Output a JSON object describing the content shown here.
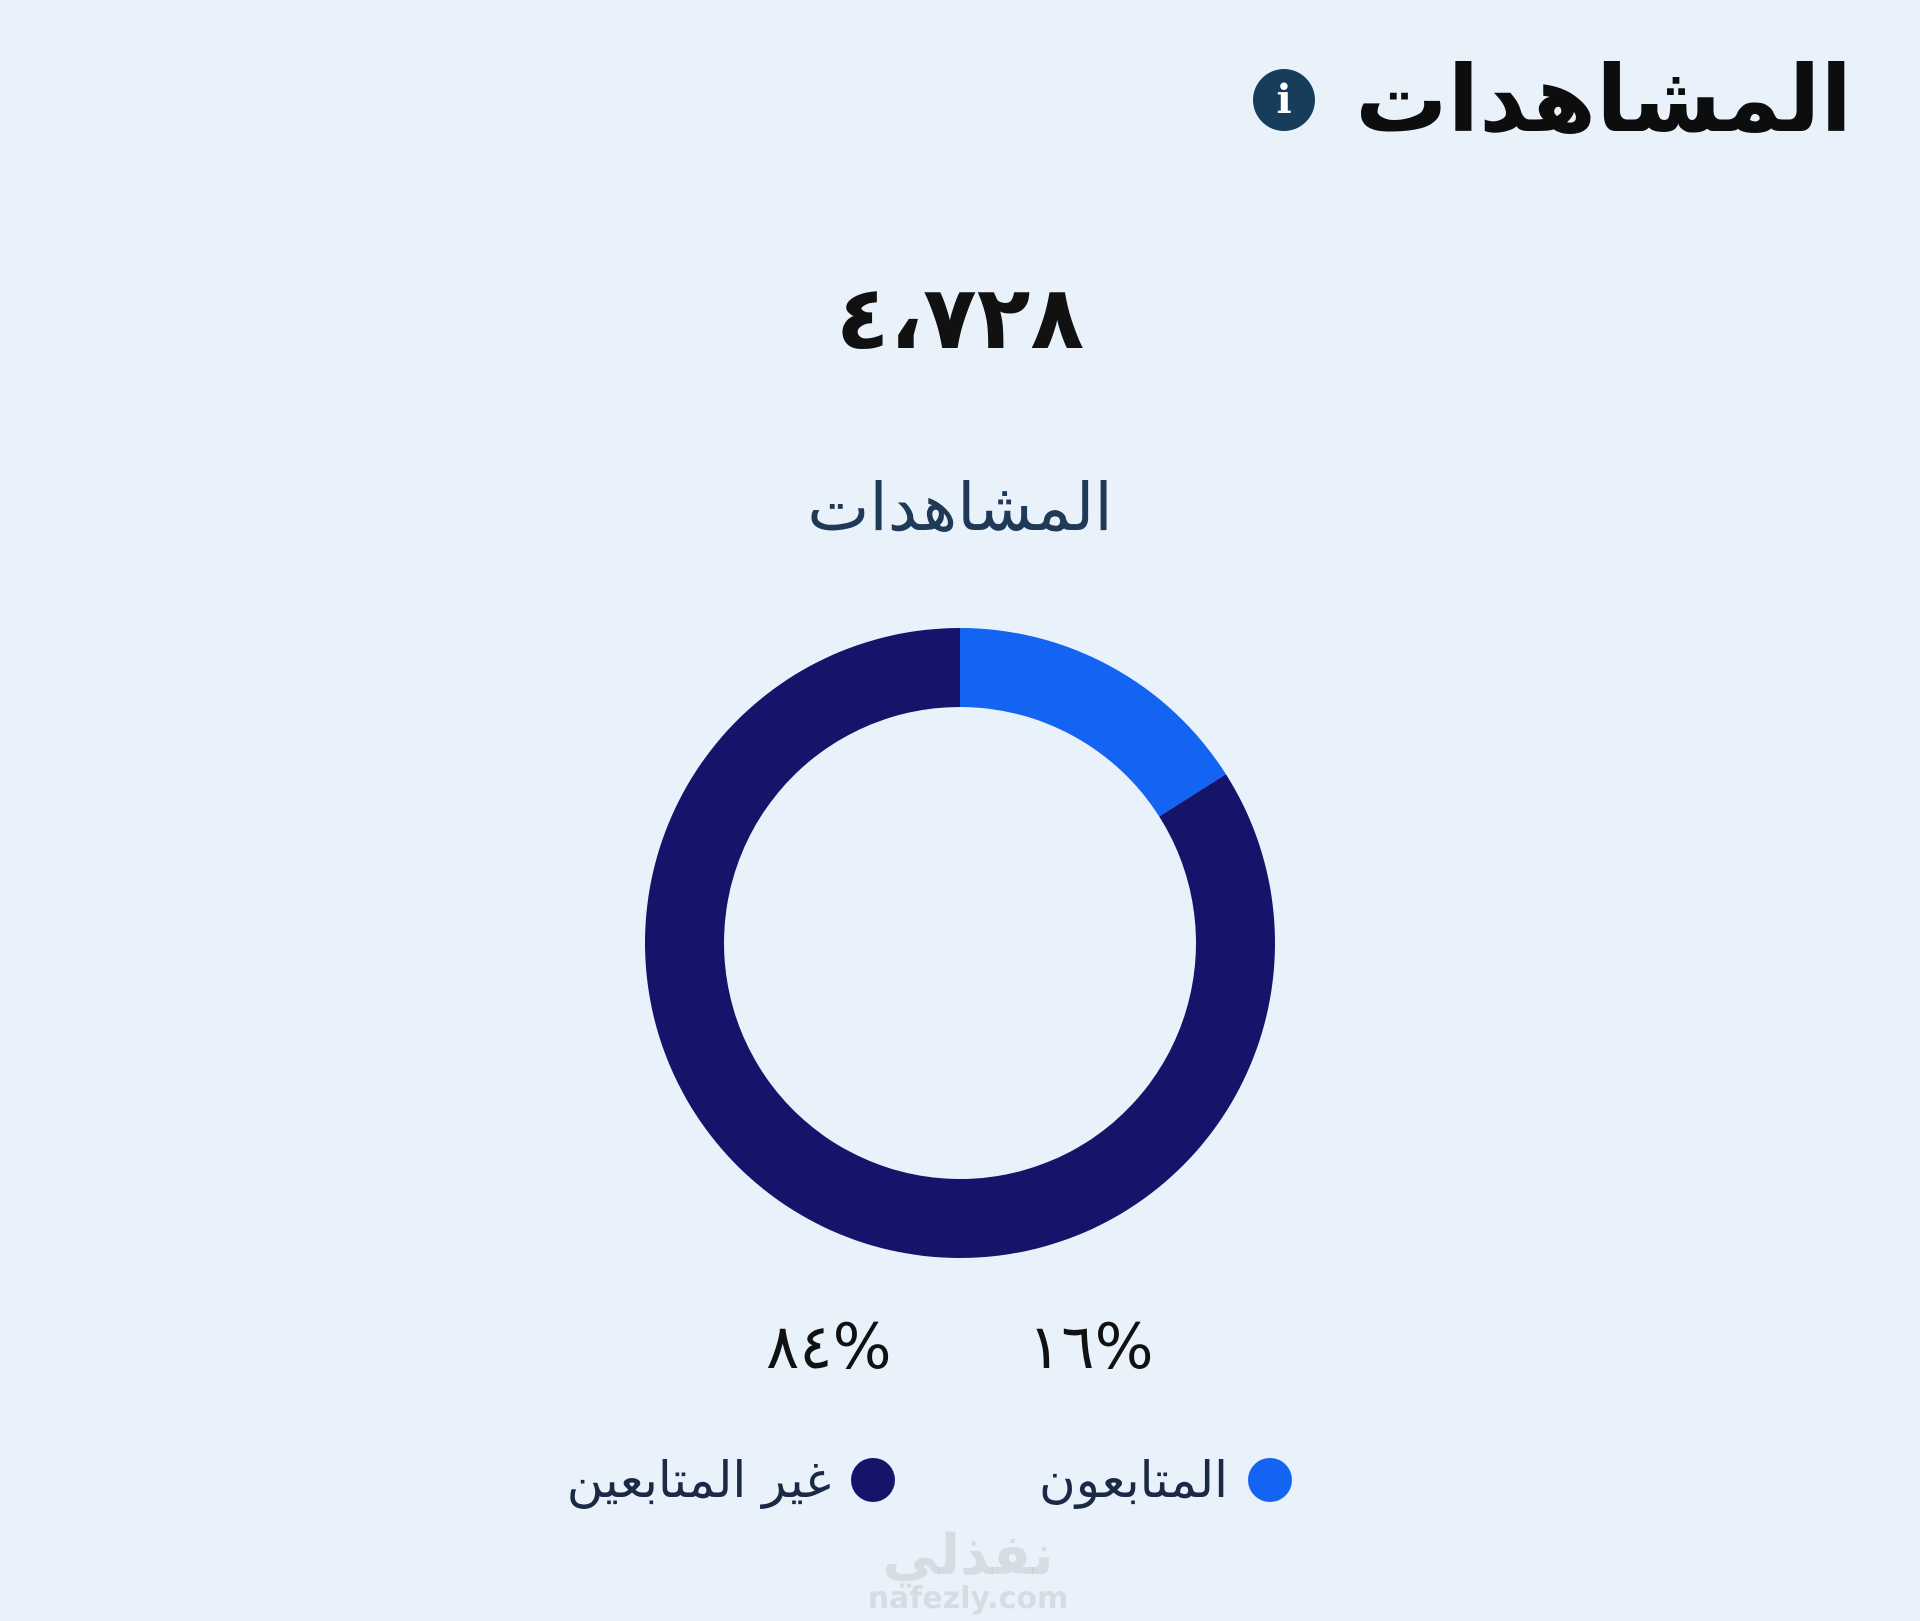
{
  "header": {
    "title": "المشاهدات",
    "info_icon": "info-icon"
  },
  "summary": {
    "total": "٤،٧٢٨",
    "subtitle": "المشاهدات"
  },
  "chart_data": {
    "type": "pie",
    "donut": true,
    "categories": [
      "المتابعون",
      "غير المتابعين"
    ],
    "values": [
      16,
      84
    ],
    "value_labels": [
      "١٦%",
      "٨٤%"
    ],
    "colors": [
      "#1464f4",
      "#15146b"
    ],
    "legend_position": "bottom"
  },
  "watermark": {
    "text": "نفذلي",
    "url": "nafezly.com"
  }
}
